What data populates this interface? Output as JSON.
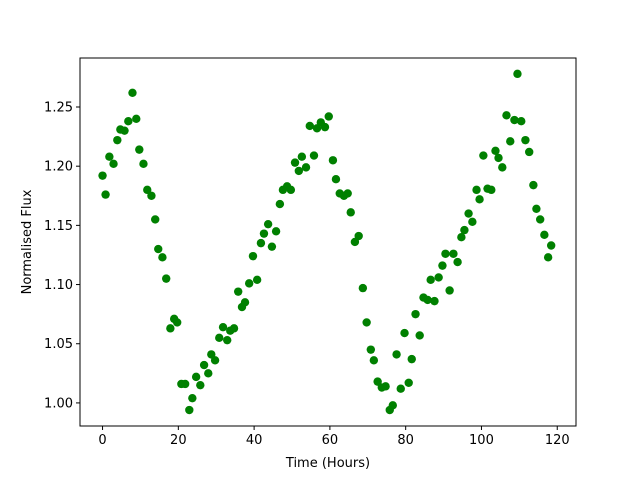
{
  "chart_data": {
    "type": "scatter",
    "x_label": "Time (Hours)",
    "y_label": "Normalised Flux",
    "color": "green",
    "x": [
      0,
      0.8,
      1.8,
      2.9,
      3.9,
      4.7,
      5.8,
      6.8,
      7.9,
      8.9,
      9.7,
      10.8,
      11.8,
      12.9,
      13.9,
      14.7,
      15.8,
      16.8,
      17.9,
      18.9,
      19.7,
      20.8,
      21.8,
      22.9,
      23.7,
      24.7,
      25.8,
      26.8,
      27.9,
      28.7,
      29.7,
      30.8,
      31.8,
      32.9,
      33.7,
      34.7,
      35.8,
      36.8,
      37.6,
      38.7,
      39.7,
      40.8,
      41.8,
      42.6,
      43.7,
      44.7,
      45.8,
      46.8,
      47.6,
      48.7,
      49.7,
      50.8,
      51.8,
      52.6,
      53.7,
      54.7,
      55.8,
      56.6,
      57.6,
      58.7,
      59.7,
      60.8,
      61.6,
      62.6,
      63.7,
      64.7,
      65.5,
      66.6,
      67.6,
      68.7,
      69.7,
      70.8,
      71.6,
      72.6,
      73.7,
      74.7,
      75.8,
      76.6,
      77.6,
      78.7,
      79.7,
      80.8,
      81.6,
      82.6,
      83.7,
      84.7,
      85.8,
      86.6,
      87.6,
      88.7,
      89.7,
      90.5,
      91.6,
      92.6,
      93.7,
      94.7,
      95.5,
      96.6,
      97.6,
      98.7,
      99.5,
      100.5,
      101.6,
      102.6,
      103.7,
      104.5,
      105.5,
      106.6,
      107.6,
      108.7,
      109.5,
      110.5,
      111.6,
      112.6,
      113.7,
      114.5,
      115.5,
      116.6,
      117.6,
      118.4
    ],
    "values": [
      1.192,
      1.176,
      1.208,
      1.202,
      1.222,
      1.231,
      1.23,
      1.238,
      1.262,
      1.24,
      1.214,
      1.202,
      1.18,
      1.175,
      1.155,
      1.13,
      1.123,
      1.105,
      1.063,
      1.071,
      1.068,
      1.016,
      1.016,
      0.994,
      1.004,
      1.022,
      1.015,
      1.032,
      1.025,
      1.041,
      1.036,
      1.055,
      1.064,
      1.053,
      1.061,
      1.063,
      1.094,
      1.081,
      1.085,
      1.101,
      1.124,
      1.104,
      1.135,
      1.143,
      1.151,
      1.132,
      1.145,
      1.168,
      1.18,
      1.183,
      1.18,
      1.203,
      1.196,
      1.208,
      1.199,
      1.234,
      1.209,
      1.232,
      1.237,
      1.233,
      1.242,
      1.205,
      1.189,
      1.177,
      1.175,
      1.177,
      1.161,
      1.136,
      1.141,
      1.097,
      1.068,
      1.045,
      1.036,
      1.018,
      1.013,
      1.014,
      0.994,
      0.998,
      1.041,
      1.012,
      1.059,
      1.017,
      1.037,
      1.075,
      1.057,
      1.089,
      1.087,
      1.104,
      1.086,
      1.106,
      1.116,
      1.126,
      1.095,
      1.126,
      1.119,
      1.14,
      1.146,
      1.16,
      1.153,
      1.18,
      1.172,
      1.209,
      1.181,
      1.18,
      1.213,
      1.207,
      1.199,
      1.243,
      1.221,
      1.239,
      1.278,
      1.238,
      1.222,
      1.212,
      1.184,
      1.164,
      1.155,
      1.142,
      1.123,
      1.133
    ],
    "xlim": [
      -5.95,
      124.95
    ],
    "ylim": [
      0.9805,
      1.2914
    ],
    "xticks": [
      0,
      20,
      40,
      60,
      80,
      100,
      120
    ],
    "yticks": [
      {
        "value": 1.0,
        "label": "1.00"
      },
      {
        "value": 1.05,
        "label": "1.05"
      },
      {
        "value": 1.1,
        "label": "1.10"
      },
      {
        "value": 1.15,
        "label": "1.15"
      },
      {
        "value": 1.2,
        "label": "1.20"
      },
      {
        "value": 1.25,
        "label": "1.25"
      }
    ]
  }
}
